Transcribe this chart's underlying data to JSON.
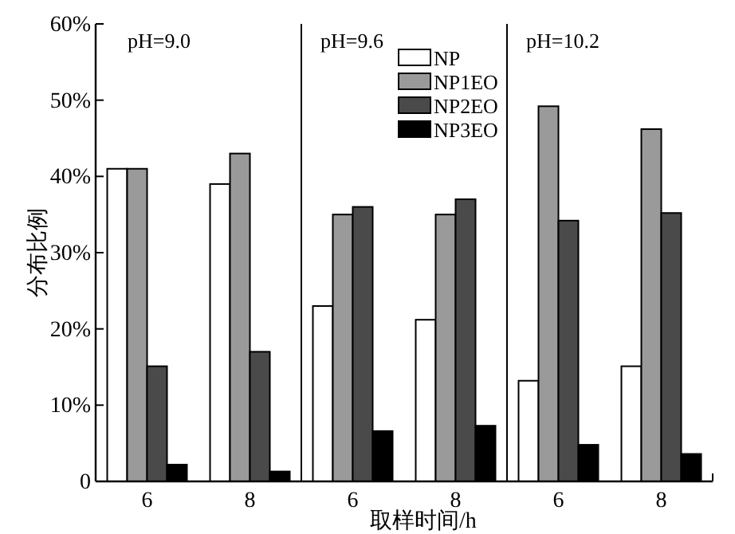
{
  "chart_data": {
    "type": "bar",
    "xlabel": "取样时间/h",
    "ylabel": "分布比例",
    "categories": [
      "6",
      "8",
      "6",
      "8",
      "6",
      "8"
    ],
    "series": [
      {
        "name": "NP",
        "color": "#ffffff",
        "values": [
          41,
          39,
          23,
          21.2,
          13.2,
          15.1
        ]
      },
      {
        "name": "NP1EO",
        "color": "#9a9a9a",
        "values": [
          41,
          43,
          35,
          35,
          49.2,
          46.2
        ]
      },
      {
        "name": "NP2EO",
        "color": "#4a4a4a",
        "values": [
          15.1,
          17,
          36,
          37,
          34.2,
          35.2
        ]
      },
      {
        "name": "NP3EO",
        "color": "#000000",
        "values": [
          2.2,
          1.3,
          6.6,
          7.3,
          4.8,
          3.6
        ]
      }
    ],
    "ylim": [
      0,
      60
    ],
    "yticks": [
      0,
      {
        "value": 10,
        "label": "10%"
      },
      {
        "value": 20,
        "label": "20%"
      },
      {
        "value": 30,
        "label": "30%"
      },
      {
        "value": 40,
        "label": "40%"
      },
      {
        "value": 50,
        "label": "50%"
      },
      {
        "value": 60,
        "label": "60%"
      }
    ],
    "annotations": [
      "pH=9.0",
      "pH=9.6",
      "pH=10.2"
    ],
    "legend": "top",
    "grid": false
  }
}
